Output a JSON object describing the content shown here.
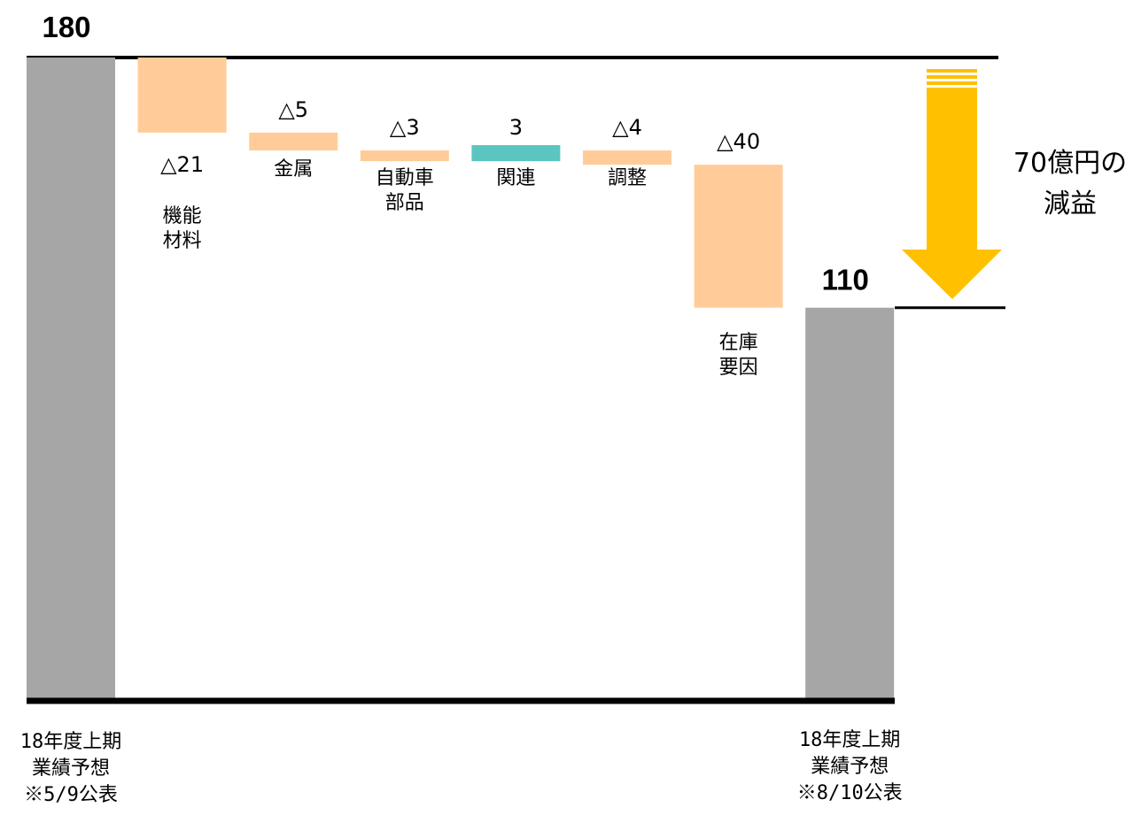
{
  "chart_data": {
    "type": "bar",
    "subtype": "waterfall",
    "categories": [
      [
        "18年度上期",
        "業績予想",
        "※5/9公表"
      ],
      [
        "機能",
        "材料"
      ],
      [
        "金属"
      ],
      [
        "自動車",
        "部品"
      ],
      [
        "関連"
      ],
      [
        "調整"
      ],
      [
        "在庫",
        "要因"
      ],
      [
        "18年度上期",
        "業績予想",
        "※8/10公表"
      ]
    ],
    "start_value": 180,
    "end_value": 110,
    "changes": [
      -21,
      -5,
      -3,
      3,
      -4,
      -40
    ],
    "value_labels": [
      "180",
      "△21",
      "△5",
      "△3",
      "3",
      "△4",
      "△40",
      "110"
    ],
    "colors": {
      "total": "#a6a6a6",
      "decrease": "#ffcc99",
      "increase": "#5bc5c0",
      "arrow": "#ffc000",
      "axis": "#000000"
    },
    "annotation": {
      "lines": [
        "70億円の",
        "減益"
      ],
      "direction": "down",
      "difference": -70
    },
    "ylim": [
      0,
      180
    ]
  }
}
